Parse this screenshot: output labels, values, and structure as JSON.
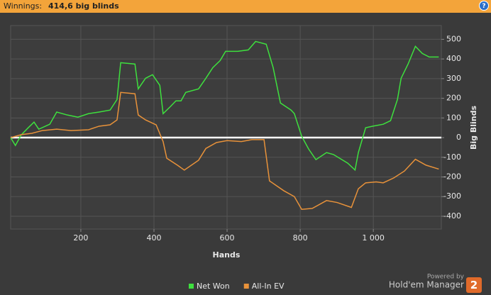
{
  "header": {
    "label": "Winnings:",
    "value": "414,6 big blinds"
  },
  "chart_data": {
    "type": "line",
    "x_label": "Hands",
    "y_label": "Big Blinds",
    "xlim": [
      8,
      1186
    ],
    "ylim": [
      -465,
      570
    ],
    "xticks": [
      200,
      400,
      600,
      800,
      {
        "value": 1000,
        "label": "1 000"
      }
    ],
    "yticks": [
      -400,
      -300,
      -200,
      -100,
      0,
      100,
      200,
      300,
      400,
      500
    ],
    "grid": true,
    "legend": "bottom",
    "series": [
      {
        "name": "Net Won",
        "color": "#3ee03e",
        "x": [
          8,
          21,
          37,
          56,
          72,
          85,
          115,
          134,
          163,
          192,
          221,
          250,
          280,
          299,
          309,
          348,
          357,
          377,
          396,
          416,
          425,
          445,
          460,
          474,
          487,
          522,
          542,
          561,
          581,
          596,
          629,
          658,
          678,
          707,
          726,
          746,
          775,
          784,
          804,
          823,
          843,
          872,
          891,
          930,
          950,
          959,
          979,
          998,
          1027,
          1047,
          1066,
          1076,
          1095,
          1115,
          1134,
          1153,
          1179
        ],
        "values": [
          0,
          -40,
          14,
          50,
          79,
          43,
          68,
          130,
          115,
          104,
          122,
          130,
          140,
          194,
          381,
          374,
          248,
          302,
          320,
          266,
          122,
          158,
          187,
          187,
          230,
          248,
          302,
          356,
          392,
          439,
          439,
          446,
          489,
          475,
          356,
          176,
          140,
          122,
          7,
          -58,
          -112,
          -76,
          -86,
          -130,
          -165,
          -76,
          50,
          58,
          68,
          86,
          194,
          302,
          374,
          464,
          428,
          410,
          410
        ]
      },
      {
        "name": "All-In EV",
        "color": "#e8923a",
        "x": [
          8,
          37,
          66,
          95,
          134,
          173,
          221,
          250,
          280,
          299,
          309,
          348,
          357,
          377,
          406,
          425,
          435,
          464,
          483,
          522,
          542,
          571,
          600,
          639,
          668,
          701,
          716,
          755,
          784,
          804,
          833,
          872,
          901,
          940,
          959,
          979,
          1008,
          1027,
          1056,
          1085,
          1115,
          1144,
          1179
        ],
        "values": [
          0,
          15,
          22,
          36,
          43,
          36,
          40,
          58,
          65,
          90,
          230,
          223,
          115,
          90,
          65,
          -20,
          -105,
          -140,
          -165,
          -115,
          -55,
          -25,
          -15,
          -20,
          -10,
          -10,
          -220,
          -270,
          -300,
          -365,
          -360,
          -320,
          -330,
          -355,
          -260,
          -230,
          -225,
          -230,
          -205,
          -170,
          -110,
          -140,
          -160
        ]
      }
    ]
  },
  "footer": {
    "powered": "Powered by",
    "brand": "Hold'em Manager",
    "version": "2"
  }
}
